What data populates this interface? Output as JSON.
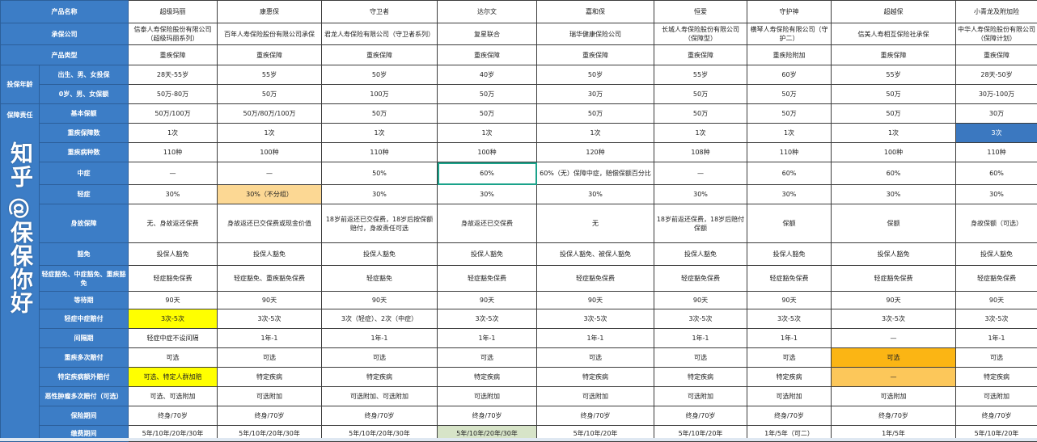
{
  "groups": {
    "age": "投保年龄",
    "coverage": "保障责任"
  },
  "rows": [
    {
      "label": "产品名称",
      "span": true,
      "cells": [
        "超级玛丽",
        "康惠保",
        "守卫者",
        "达尔文",
        "嘉和保",
        "恒爱",
        "守护神",
        "超越保",
        "小青龙及附加险"
      ]
    },
    {
      "label": "承保公司",
      "span": true,
      "cells": [
        "信泰人寿保险股份有限公司（超级玛丽系列）",
        "百年人寿保险股份有限公司承保",
        "君龙人寿保险有限公司（守卫者系列）",
        "复星联合",
        "瑞华健康保险公司",
        "长城人寿保险股份有限公司（保障型）",
        "横琴人寿保险有限公司（守护二）",
        "信美人寿相互保险社承保",
        "中华人寿保险股份有限公司（保障计划）"
      ]
    },
    {
      "label": "产品类型",
      "span": true,
      "cells": [
        "重疾保障",
        "重疾保障",
        "重疾保障",
        "重疾保障",
        "重疾保障",
        "重疾保障",
        "重疾险附加",
        "重疾保障",
        "重疾保障"
      ]
    },
    {
      "label": "出生、男、女投保",
      "group": "age",
      "cells": [
        "28天-55岁",
        "55岁",
        "50岁",
        "40岁",
        "50岁",
        "55岁",
        "60岁",
        "55岁",
        "28天-50岁"
      ]
    },
    {
      "label": "0岁、男、女保额",
      "cells": [
        "50万-80万",
        "50万",
        "100万",
        "50万",
        "30万",
        "50万",
        "50万",
        "50万",
        "30万-100万"
      ]
    },
    {
      "label": "基本保额",
      "group": "coverage",
      "cells": [
        "50万/100万",
        "50万/80万/100万",
        "50万",
        "50万",
        "50万",
        "50万",
        "50万",
        "50万",
        "30万"
      ]
    },
    {
      "label": "重疾保障数",
      "cells": [
        "1次",
        "1次",
        "1次",
        "1次",
        "1次",
        "1次",
        "1次",
        "1次",
        "3次"
      ]
    },
    {
      "label": "重疾病种数",
      "cells": [
        "110种",
        "100种",
        "110种",
        "100种",
        "120种",
        "108种",
        "110种",
        "100种",
        "110种"
      ]
    },
    {
      "label": "中症",
      "cells": [
        "—",
        "—",
        "50%",
        "60%",
        "60%（无）保障中症，赔偿保额百分比",
        "—",
        "60%",
        "60%",
        "60%"
      ]
    },
    {
      "label": "轻症",
      "cells": [
        "30%",
        "30%（不分组）",
        "30%",
        "30%",
        "30%",
        "30%",
        "30%",
        "30%",
        "30%"
      ]
    },
    {
      "label": "身故保障",
      "cells": [
        "无、身故返还保费",
        "身故返还已交保费或现金价值",
        "18岁前返还已交保费，18岁后按保额赔付，身故责任可选",
        "身故返还已交保费",
        "无",
        "18岁前返还保费，18岁后赔付保额",
        "保额",
        "保额",
        "身故保额（可选）"
      ]
    },
    {
      "label": "豁免",
      "cells": [
        "投保人豁免",
        "投保人豁免",
        "投保人豁免",
        "投保人豁免",
        "投保人豁免、被保人豁免",
        "投保人豁免",
        "投保人豁免",
        "投保人豁免",
        "投保人豁免"
      ]
    },
    {
      "label": "轻症豁免、中症豁免、重疾豁免",
      "cells": [
        "轻症豁免保费",
        "轻症豁免、重疾豁免保费",
        "轻症豁免",
        "轻症豁免保费",
        "轻症豁免保费",
        "轻症豁免保费",
        "轻症豁免保费",
        "轻症豁免保费",
        "轻症豁免保费"
      ]
    },
    {
      "label": "等待期",
      "cells": [
        "90天",
        "90天",
        "90天",
        "90天",
        "90天",
        "90天",
        "90天",
        "90天",
        "90天"
      ]
    },
    {
      "label": "轻症中症赔付",
      "cells": [
        "3次-5次",
        "3次-5次",
        "3次（轻症）、2次（中症）",
        "3次-5次",
        "3次-5次",
        "3次-5次",
        "3次-5次",
        "3次-5次",
        "3次-5次"
      ]
    },
    {
      "label": "间隔期",
      "cells": [
        "轻症中症不设间隔",
        "1年-1",
        "1年-1",
        "1年-1",
        "1年-1",
        "1年-1",
        "1年-1",
        "—",
        "1年-1"
      ]
    },
    {
      "label": "重疾多次赔付",
      "cells": [
        "可选",
        "可选",
        "可选",
        "可选",
        "可选",
        "可选",
        "可选",
        "可选",
        "可选"
      ]
    },
    {
      "label": "特定疾病额外赔付",
      "cells": [
        "可选、特定人群加赔",
        "特定疾病",
        "特定疾病",
        "特定疾病",
        "特定疾病",
        "特定疾病",
        "特定疾病",
        "—",
        "特定疾病"
      ]
    },
    {
      "label": "恶性肿瘤多次赔付（可选）",
      "cells": [
        "可选、可选附加",
        "可选附加",
        "可选附加、可选附加",
        "可选附加",
        "可选附加",
        "可选附加",
        "可选附加",
        "可选附加",
        "可选附加"
      ]
    },
    {
      "label": "保险期间",
      "cells": [
        "终身/70岁",
        "终身/70岁",
        "终身/70岁",
        "终身/70岁",
        "终身/70岁",
        "终身/70岁",
        "终身/70岁",
        "终身/70岁",
        "终身/70岁"
      ]
    },
    {
      "label": "缴费期间",
      "cells": [
        "5年/10年/20年/30年",
        "5年/10年/20年/30年",
        "5年/10年/20年/30年",
        "5年/10年/20年/30年",
        "5年/10年/20年",
        "5年/10年/20年",
        "1年/5年（可二）",
        "1年/5年",
        "5年/10年/20年"
      ]
    }
  ],
  "highlights": [
    {
      "row": 9,
      "col": 1,
      "color": "#fcd894"
    },
    {
      "row": 14,
      "col": 0,
      "color": "#ffff00"
    },
    {
      "row": 16,
      "col": 7,
      "color": "#fbb514"
    },
    {
      "row": 17,
      "col": 0,
      "color": "#ffff00"
    },
    {
      "row": 17,
      "col": 7,
      "color": "#fcc75a"
    },
    {
      "row": 6,
      "col": 8,
      "color": "#3b78c0"
    },
    {
      "row": 20,
      "col": 3,
      "color": "#d7e4c8"
    }
  ],
  "selected_cell": {
    "row": 8,
    "col": 3
  },
  "watermark": "知乎 @保保你好"
}
